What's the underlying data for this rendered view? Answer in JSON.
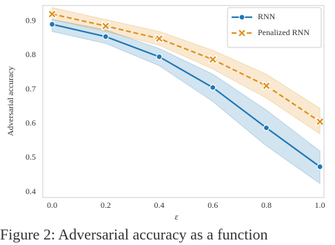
{
  "chart_data": {
    "type": "line",
    "x": [
      0.0,
      0.2,
      0.4,
      0.6,
      0.8,
      1.0
    ],
    "xlabel": "ε",
    "ylabel": "Adversarial accuracy",
    "xlim": [
      -0.035,
      1.015
    ],
    "ylim": [
      0.384,
      0.946
    ],
    "xticks": [
      {
        "value": 0,
        "label": "0.0"
      },
      0.2,
      0.4,
      0.6,
      0.8,
      {
        "value": 1,
        "label": "1.0"
      }
    ],
    "yticks": [
      0.4,
      0.5,
      0.6,
      0.7,
      0.8,
      0.9
    ],
    "grid": false,
    "legend": "upper right",
    "series": [
      {
        "name": "RNN",
        "color": "#1f77b4",
        "marker": "circle",
        "values": [
          0.891,
          0.855,
          0.796,
          0.706,
          0.588,
          0.474
        ],
        "lower": [
          0.87,
          0.835,
          0.77,
          0.665,
          0.535,
          0.425
        ],
        "upper": [
          0.905,
          0.875,
          0.82,
          0.745,
          0.64,
          0.52
        ]
      },
      {
        "name": "Penalized RNN",
        "color": "#e08f1a",
        "marker": "x",
        "dashed": true,
        "values": [
          0.921,
          0.886,
          0.849,
          0.788,
          0.711,
          0.606
        ],
        "lower": [
          0.905,
          0.87,
          0.83,
          0.76,
          0.675,
          0.57
        ],
        "upper": [
          0.94,
          0.905,
          0.87,
          0.815,
          0.745,
          0.645
        ]
      }
    ]
  },
  "caption": "Figure 2: Adversarial accuracy as a function"
}
